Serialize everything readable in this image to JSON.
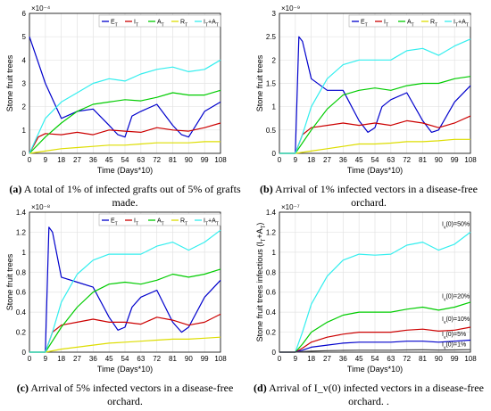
{
  "colors": {
    "E": "#0000cc",
    "I": "#cc0000",
    "A": "#00cc00",
    "R": "#dddd00",
    "IA": "#33eeee",
    "rate1": "#444444"
  },
  "captions": [
    {
      "letter": "(a)",
      "text": "A total of 1% of infected grafts out of 5% of grafts made."
    },
    {
      "letter": "(b)",
      "text": "Arrival of 1% infected vectors in a disease-free orchard."
    },
    {
      "letter": "(c)",
      "text": "Arrival of 5% infected vectors in a disease-free orchard."
    },
    {
      "letter": "(d)",
      "text": "Arrival of I_v(0) infected vectors in a disease-free orchard. ."
    }
  ],
  "chart_data": [
    {
      "type": "line",
      "xlabel": "Time (Days*10)",
      "ylabel": "Stone fruit trees",
      "exponent": "×10⁻⁴",
      "xlim": [
        0,
        108
      ],
      "ylim": [
        0,
        6
      ],
      "xticks": [
        0,
        9,
        18,
        27,
        36,
        45,
        54,
        63,
        72,
        81,
        90,
        99,
        108
      ],
      "yticks": [
        0,
        1,
        2,
        3,
        4,
        5,
        6
      ],
      "legend": "top-right",
      "series": [
        {
          "name": "E_T",
          "color": "E",
          "x": [
            0,
            9,
            18,
            27,
            36,
            45,
            50,
            54,
            58,
            63,
            72,
            81,
            86,
            90,
            99,
            108
          ],
          "y": [
            5,
            3.0,
            1.5,
            1.8,
            1.9,
            1.2,
            0.8,
            0.7,
            1.6,
            1.8,
            2.1,
            1.2,
            0.8,
            0.7,
            1.8,
            2.2
          ]
        },
        {
          "name": "I_T",
          "color": "I",
          "x": [
            0,
            5,
            9,
            18,
            27,
            36,
            45,
            54,
            63,
            72,
            81,
            90,
            99,
            108
          ],
          "y": [
            0,
            0.7,
            0.85,
            0.8,
            0.9,
            0.8,
            1.0,
            0.95,
            0.9,
            1.1,
            1.0,
            0.95,
            1.1,
            1.3
          ]
        },
        {
          "name": "A_T",
          "color": "A",
          "x": [
            0,
            9,
            18,
            27,
            36,
            45,
            54,
            63,
            72,
            81,
            90,
            99,
            108
          ],
          "y": [
            0,
            0.7,
            1.3,
            1.8,
            2.1,
            2.2,
            2.3,
            2.25,
            2.4,
            2.6,
            2.5,
            2.5,
            2.7
          ]
        },
        {
          "name": "R_T",
          "color": "R",
          "x": [
            0,
            9,
            18,
            27,
            36,
            45,
            54,
            63,
            72,
            81,
            90,
            99,
            108
          ],
          "y": [
            0,
            0.1,
            0.2,
            0.25,
            0.3,
            0.35,
            0.35,
            0.4,
            0.45,
            0.45,
            0.45,
            0.5,
            0.5
          ]
        },
        {
          "name": "I_T+A_T",
          "color": "IA",
          "x": [
            0,
            9,
            18,
            27,
            36,
            45,
            54,
            63,
            72,
            81,
            90,
            99,
            108
          ],
          "y": [
            0,
            1.5,
            2.2,
            2.6,
            3.0,
            3.2,
            3.1,
            3.4,
            3.6,
            3.7,
            3.5,
            3.6,
            4.0
          ]
        }
      ]
    },
    {
      "type": "line",
      "xlabel": "Time (Days*10)",
      "ylabel": "Stone fruit trees",
      "exponent": "×10⁻⁹",
      "xlim": [
        0,
        108
      ],
      "ylim": [
        0,
        3
      ],
      "xticks": [
        0,
        9,
        18,
        27,
        36,
        45,
        54,
        63,
        72,
        81,
        90,
        99,
        108
      ],
      "yticks": [
        0,
        0.5,
        1,
        1.5,
        2,
        2.5,
        3
      ],
      "legend": "top-right",
      "series": [
        {
          "name": "E_T",
          "color": "E",
          "x": [
            0,
            9,
            11,
            13,
            18,
            27,
            36,
            45,
            50,
            54,
            58,
            63,
            72,
            81,
            86,
            90,
            99,
            108
          ],
          "y": [
            0,
            0,
            2.5,
            2.4,
            1.6,
            1.35,
            1.35,
            0.7,
            0.45,
            0.55,
            1.0,
            1.15,
            1.3,
            0.7,
            0.45,
            0.5,
            1.1,
            1.45
          ]
        },
        {
          "name": "I_T",
          "color": "I",
          "x": [
            0,
            9,
            13,
            18,
            27,
            36,
            45,
            54,
            63,
            72,
            81,
            90,
            99,
            108
          ],
          "y": [
            0,
            0,
            0.4,
            0.55,
            0.6,
            0.65,
            0.6,
            0.65,
            0.6,
            0.7,
            0.65,
            0.55,
            0.65,
            0.8
          ]
        },
        {
          "name": "A_T",
          "color": "A",
          "x": [
            0,
            9,
            18,
            27,
            36,
            45,
            54,
            63,
            72,
            81,
            90,
            99,
            108
          ],
          "y": [
            0,
            0,
            0.5,
            0.95,
            1.25,
            1.35,
            1.4,
            1.35,
            1.45,
            1.5,
            1.5,
            1.6,
            1.65
          ]
        },
        {
          "name": "R_T",
          "color": "R",
          "x": [
            0,
            9,
            18,
            27,
            36,
            45,
            54,
            63,
            72,
            81,
            90,
            99,
            108
          ],
          "y": [
            0,
            0,
            0.05,
            0.1,
            0.15,
            0.2,
            0.2,
            0.22,
            0.25,
            0.25,
            0.27,
            0.3,
            0.3
          ]
        },
        {
          "name": "I_T+A_T",
          "color": "IA",
          "x": [
            0,
            9,
            13,
            18,
            27,
            36,
            45,
            54,
            63,
            72,
            81,
            90,
            99,
            108
          ],
          "y": [
            0,
            0,
            0.4,
            1.0,
            1.6,
            1.9,
            2.0,
            2.0,
            2.0,
            2.2,
            2.25,
            2.1,
            2.3,
            2.45
          ]
        }
      ]
    },
    {
      "type": "line",
      "xlabel": "Time (Days*10)",
      "ylabel": "Stone fruit trees",
      "exponent": "×10⁻⁸",
      "xlim": [
        0,
        108
      ],
      "ylim": [
        0,
        1.4
      ],
      "xticks": [
        0,
        9,
        18,
        27,
        36,
        45,
        54,
        63,
        72,
        81,
        90,
        99,
        108
      ],
      "yticks": [
        0,
        0.2,
        0.4,
        0.6,
        0.8,
        1,
        1.2,
        1.4
      ],
      "legend": "top-right",
      "series": [
        {
          "name": "E_T",
          "color": "E",
          "x": [
            0,
            9,
            11,
            13,
            18,
            27,
            36,
            45,
            50,
            54,
            58,
            63,
            72,
            81,
            86,
            90,
            99,
            108
          ],
          "y": [
            0,
            0,
            1.25,
            1.2,
            0.75,
            0.7,
            0.65,
            0.35,
            0.22,
            0.25,
            0.45,
            0.55,
            0.62,
            0.3,
            0.2,
            0.25,
            0.55,
            0.72
          ]
        },
        {
          "name": "I_T",
          "color": "I",
          "x": [
            0,
            9,
            13,
            18,
            27,
            36,
            45,
            54,
            63,
            72,
            81,
            90,
            99,
            108
          ],
          "y": [
            0,
            0,
            0.2,
            0.27,
            0.3,
            0.33,
            0.3,
            0.3,
            0.28,
            0.35,
            0.32,
            0.27,
            0.3,
            0.38
          ]
        },
        {
          "name": "A_T",
          "color": "A",
          "x": [
            0,
            9,
            18,
            27,
            36,
            45,
            54,
            63,
            72,
            81,
            90,
            99,
            108
          ],
          "y": [
            0,
            0,
            0.25,
            0.45,
            0.6,
            0.68,
            0.7,
            0.68,
            0.72,
            0.78,
            0.75,
            0.78,
            0.83
          ]
        },
        {
          "name": "R_T",
          "color": "R",
          "x": [
            0,
            9,
            18,
            27,
            36,
            45,
            54,
            63,
            72,
            81,
            90,
            99,
            108
          ],
          "y": [
            0,
            0,
            0.03,
            0.05,
            0.07,
            0.09,
            0.1,
            0.11,
            0.12,
            0.13,
            0.13,
            0.14,
            0.15
          ]
        },
        {
          "name": "I_T+A_T",
          "color": "IA",
          "x": [
            0,
            9,
            13,
            18,
            27,
            36,
            45,
            54,
            63,
            72,
            81,
            90,
            99,
            108
          ],
          "y": [
            0,
            0,
            0.2,
            0.5,
            0.78,
            0.92,
            0.98,
            0.98,
            0.98,
            1.06,
            1.1,
            1.02,
            1.1,
            1.22
          ]
        }
      ]
    },
    {
      "type": "line",
      "xlabel": "Time (Days*10)",
      "ylabel": "Stone fruit trees infectious (I_T+A_T)",
      "exponent": "×10⁻⁷",
      "xlim": [
        0,
        108
      ],
      "ylim": [
        0,
        1.4
      ],
      "xticks": [
        0,
        9,
        18,
        27,
        36,
        45,
        54,
        63,
        72,
        81,
        90,
        99,
        108
      ],
      "yticks": [
        0,
        0.2,
        0.4,
        0.6,
        0.8,
        1,
        1.2,
        1.4
      ],
      "legend": "none",
      "series": [
        {
          "name": "I_v(0)=50%",
          "color": "IA",
          "label_y": 1.26,
          "x": [
            0,
            9,
            13,
            18,
            27,
            36,
            45,
            54,
            63,
            72,
            81,
            90,
            99,
            108
          ],
          "y": [
            0,
            0,
            0.2,
            0.48,
            0.76,
            0.92,
            0.98,
            0.97,
            0.98,
            1.07,
            1.1,
            1.02,
            1.08,
            1.2
          ]
        },
        {
          "name": "I_v(0)=20%",
          "color": "A",
          "label_y": 0.54,
          "x": [
            0,
            9,
            13,
            18,
            27,
            36,
            45,
            54,
            63,
            72,
            81,
            90,
            99,
            108
          ],
          "y": [
            0,
            0,
            0.08,
            0.2,
            0.3,
            0.37,
            0.4,
            0.4,
            0.4,
            0.43,
            0.45,
            0.42,
            0.45,
            0.5
          ]
        },
        {
          "name": "I_v(0)=10%",
          "color": "I",
          "label_y": 0.31,
          "x": [
            0,
            9,
            13,
            18,
            27,
            36,
            45,
            54,
            63,
            72,
            81,
            90,
            99,
            108
          ],
          "y": [
            0,
            0,
            0.04,
            0.1,
            0.15,
            0.18,
            0.2,
            0.2,
            0.2,
            0.22,
            0.23,
            0.21,
            0.22,
            0.25
          ]
        },
        {
          "name": "I_v(0)=5%",
          "color": "E",
          "label_y": 0.16,
          "x": [
            0,
            9,
            13,
            18,
            27,
            36,
            45,
            54,
            63,
            72,
            81,
            90,
            99,
            108
          ],
          "y": [
            0,
            0,
            0.02,
            0.05,
            0.07,
            0.09,
            0.1,
            0.1,
            0.1,
            0.11,
            0.11,
            0.1,
            0.11,
            0.12
          ]
        },
        {
          "name": "I_v(0)=1%",
          "color": "rate1",
          "label_y": 0.06,
          "x": [
            0,
            9,
            13,
            18,
            27,
            36,
            45,
            54,
            63,
            72,
            81,
            90,
            99,
            108
          ],
          "y": [
            0,
            0,
            0.005,
            0.01,
            0.015,
            0.018,
            0.02,
            0.02,
            0.02,
            0.022,
            0.023,
            0.021,
            0.022,
            0.025
          ]
        }
      ]
    }
  ]
}
